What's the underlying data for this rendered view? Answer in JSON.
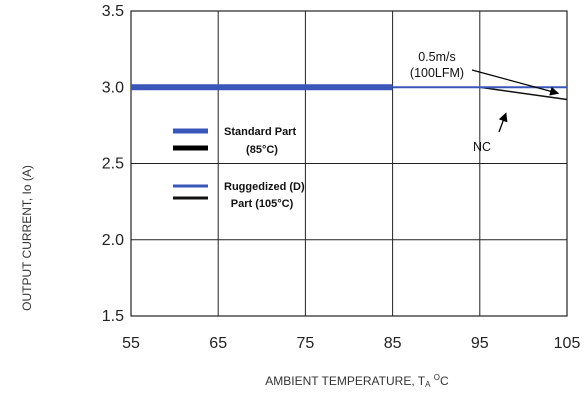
{
  "chart_data": {
    "type": "line",
    "xlabel_parts": [
      "AMBIENT TEMPERATURE, T",
      "A",
      " ",
      "O",
      "C"
    ],
    "ylabel": "OUTPUT CURRENT, Io  (A)",
    "xlim": [
      55,
      105
    ],
    "ylim": [
      1.5,
      3.5
    ],
    "x_ticks": [
      "55",
      "65",
      "75",
      "85",
      "95",
      "105"
    ],
    "y_ticks": [
      "1.5",
      "2.0",
      "2.5",
      "3.0",
      "3.5"
    ],
    "grid": true,
    "series": [
      {
        "name": "Standard Part (85°C) — 0.5m/s (100LFM)",
        "color": "#3a56b8",
        "width": 6,
        "x": [
          55,
          85
        ],
        "y": [
          3.0,
          3.0
        ]
      },
      {
        "name": "Standard Part (85°C) — NC",
        "color": "#000000",
        "width": 4,
        "x": [
          55,
          85
        ],
        "y": [
          3.0,
          3.0
        ]
      },
      {
        "name": "Ruggedized (D) Part (105°C) — 0.5m/s (100LFM)",
        "color": "#3a56b8",
        "width": 2,
        "x": [
          85,
          105
        ],
        "y": [
          3.0,
          3.0
        ]
      },
      {
        "name": "Ruggedized (D) Part (105°C) — NC",
        "color": "#111111",
        "width": 1.5,
        "x": [
          85,
          95,
          105
        ],
        "y": [
          3.0,
          3.0,
          2.92
        ]
      }
    ],
    "legend": {
      "placement": "left, mid-height",
      "entries": [
        {
          "lines": [
            "Standard Part",
            "(85°C)"
          ],
          "swatches": [
            "#3a56b8",
            "#000000"
          ]
        },
        {
          "lines": [
            "Ruggedized (D)",
            "Part (105°C)"
          ],
          "swatches": [
            "#3a56b8",
            "#111111"
          ]
        }
      ]
    },
    "annotations": [
      {
        "lines": [
          "0.5m/s",
          "(100LFM)"
        ],
        "target": {
          "x": 104,
          "y": 2.96
        }
      },
      {
        "lines": [
          "NC"
        ],
        "target": {
          "x": 98,
          "y": 2.83
        }
      }
    ]
  }
}
